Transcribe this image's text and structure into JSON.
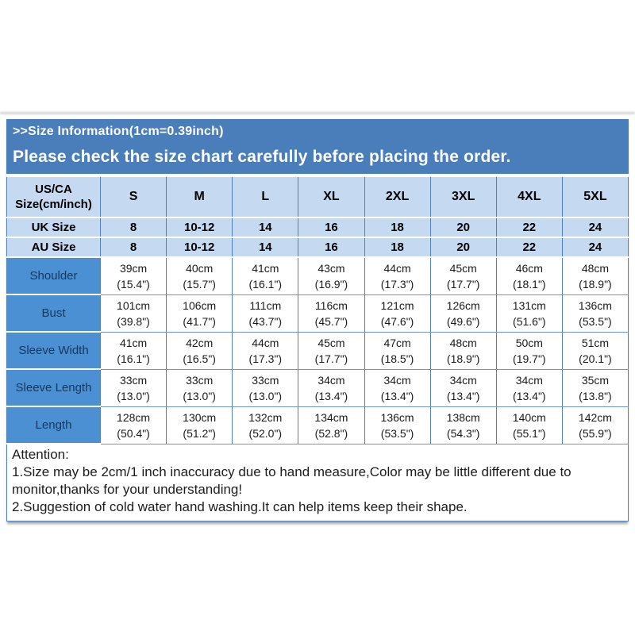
{
  "banner": {
    "line1": ">>Size Information(1cm=0.39inch)",
    "line2": "Please check the size chart carefully before placing the order."
  },
  "table": {
    "corner": {
      "line1": "US/CA",
      "line2": "Size(cm/inch)"
    },
    "size_headers": [
      "S",
      "M",
      "L",
      "XL",
      "2XL",
      "3XL",
      "4XL",
      "5XL"
    ],
    "size_rows": [
      {
        "label": "UK Size",
        "values": [
          "8",
          "10-12",
          "14",
          "16",
          "18",
          "20",
          "22",
          "24"
        ]
      },
      {
        "label": "AU Size",
        "values": [
          "8",
          "10-12",
          "14",
          "16",
          "18",
          "20",
          "22",
          "24"
        ]
      }
    ],
    "measurement_rows": [
      {
        "label": "Shoulder",
        "cm": [
          "39cm",
          "40cm",
          "41cm",
          "43cm",
          "44cm",
          "45cm",
          "46cm",
          "48cm"
        ],
        "inch": [
          "(15.4\")",
          "(15.7\")",
          "(16.1\")",
          "(16.9\")",
          "(17.3\")",
          "(17.7\")",
          "(18.1\")",
          "(18.9\")"
        ]
      },
      {
        "label": "Bust",
        "cm": [
          "101cm",
          "106cm",
          "111cm",
          "116cm",
          "121cm",
          "126cm",
          "131cm",
          "136cm"
        ],
        "inch": [
          "(39.8\")",
          "(41.7\")",
          "(43.7\")",
          "(45.7\")",
          "(47.6\")",
          "(49.6\")",
          "(51.6\")",
          "(53.5\")"
        ]
      },
      {
        "label": "Sleeve Width",
        "cm": [
          "41cm",
          "42cm",
          "44cm",
          "45cm",
          "47cm",
          "48cm",
          "50cm",
          "51cm"
        ],
        "inch": [
          "(16.1\")",
          "(16.5\")",
          "(17.3\")",
          "(17.7\")",
          "(18.5\")",
          "(18.9\")",
          "(19.7\")",
          "(20.1\")"
        ]
      },
      {
        "label": "Sleeve Length",
        "cm": [
          "33cm",
          "33cm",
          "33cm",
          "34cm",
          "34cm",
          "34cm",
          "34cm",
          "35cm"
        ],
        "inch": [
          "(13.0\")",
          "(13.0\")",
          "(13.0\")",
          "(13.4\")",
          "(13.4\")",
          "(13.4\")",
          "(13.4\")",
          "(13.8\")"
        ]
      },
      {
        "label": "Length",
        "cm": [
          "128cm",
          "130cm",
          "132cm",
          "134cm",
          "136cm",
          "138cm",
          "140cm",
          "142cm"
        ],
        "inch": [
          "(50.4\")",
          "(51.2\")",
          "(52.0\")",
          "(52.8\")",
          "(53.5\")",
          "(54.3\")",
          "(55.1\")",
          "(55.9\")"
        ]
      }
    ]
  },
  "attention": {
    "title": "Attention:",
    "lines": [
      "1.Size may be 2cm/1 inch inaccuracy due to hand measure,Color may be little different due to monitor,thanks for your understanding!",
      "2.Suggestion of cold water hand washing.It can help items keep their shape."
    ]
  },
  "colors": {
    "banner_blue": "#4A7EBB",
    "light_blue": "#C5D9F1",
    "label_blue": "#4A90D2",
    "border_blue": "#4F81BD",
    "grid_blue": "#6C96D2",
    "label_text": "#17375E"
  }
}
